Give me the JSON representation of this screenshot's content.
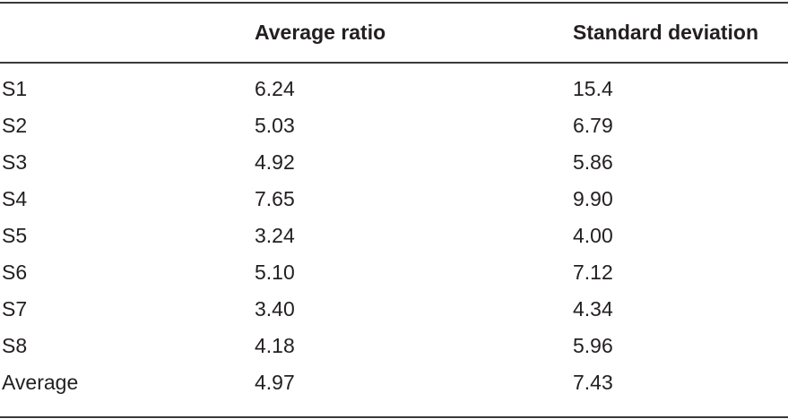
{
  "table": {
    "headers": [
      "",
      "Average ratio",
      "Standard deviation"
    ],
    "rows": [
      {
        "label": "S1",
        "average_ratio": "6.24",
        "standard_deviation": "15.4"
      },
      {
        "label": "S2",
        "average_ratio": "5.03",
        "standard_deviation": "6.79"
      },
      {
        "label": "S3",
        "average_ratio": "4.92",
        "standard_deviation": "5.86"
      },
      {
        "label": "S4",
        "average_ratio": "7.65",
        "standard_deviation": "9.90"
      },
      {
        "label": "S5",
        "average_ratio": "3.24",
        "standard_deviation": "4.00"
      },
      {
        "label": "S6",
        "average_ratio": "5.10",
        "standard_deviation": "7.12"
      },
      {
        "label": "S7",
        "average_ratio": "3.40",
        "standard_deviation": "4.34"
      },
      {
        "label": "S8",
        "average_ratio": "4.18",
        "standard_deviation": "5.96"
      },
      {
        "label": "Average",
        "average_ratio": "4.97",
        "standard_deviation": "7.43"
      }
    ]
  },
  "colors": {
    "text": "#231f20",
    "rule": "#3a3a3a",
    "background": "#ffffff"
  }
}
